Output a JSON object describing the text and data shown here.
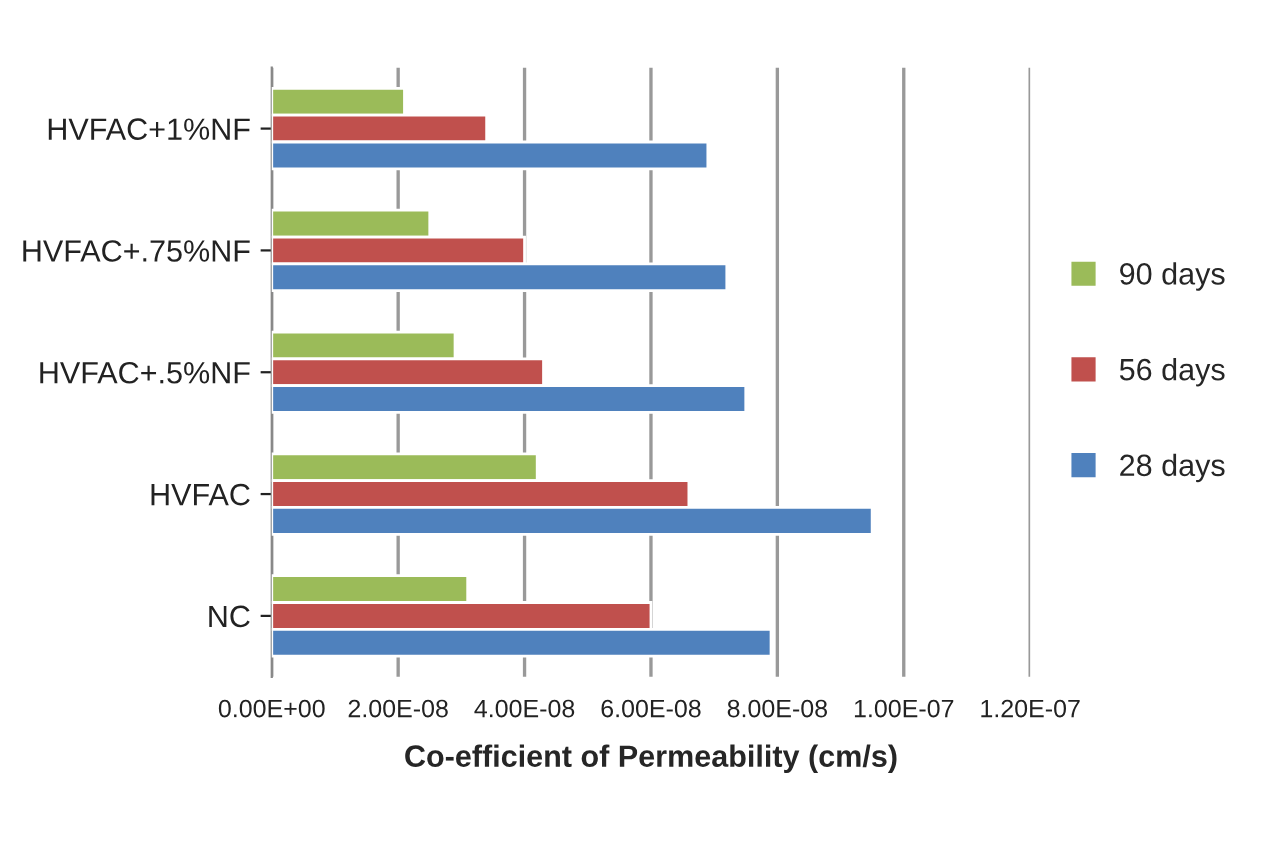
{
  "chart_data": {
    "type": "bar",
    "orientation": "horizontal",
    "xlabel": "Co-efficient of Permeability (cm/s)",
    "categories": [
      "HVFAC+1%NF",
      "HVFAC+.75%NF",
      "HVFAC+.5%NF",
      "HVFAC",
      "NC"
    ],
    "series": [
      {
        "name": "90 days",
        "color": "#9bbb59",
        "values": [
          2.1e-08,
          2.5e-08,
          2.9e-08,
          4.2e-08,
          3.1e-08
        ]
      },
      {
        "name": "56 days",
        "color": "#c0504d",
        "values": [
          3.4e-08,
          4e-08,
          4.3e-08,
          6.6e-08,
          6e-08
        ]
      },
      {
        "name": "28 days",
        "color": "#4f81bd",
        "values": [
          6.9e-08,
          7.2e-08,
          7.5e-08,
          9.5e-08,
          7.9e-08
        ]
      }
    ],
    "xlim": [
      0,
      1.2e-07
    ],
    "xticks": [
      {
        "value": 0,
        "label": "0.00E+00"
      },
      {
        "value": 2e-08,
        "label": "2.00E-08"
      },
      {
        "value": 4e-08,
        "label": "4.00E-08"
      },
      {
        "value": 6e-08,
        "label": "6.00E-08"
      },
      {
        "value": 8e-08,
        "label": "8.00E-08"
      },
      {
        "value": 1e-07,
        "label": "1.00E-07"
      },
      {
        "value": 1.2e-07,
        "label": "1.20E-07"
      }
    ],
    "grid": "x",
    "legend": "right"
  }
}
